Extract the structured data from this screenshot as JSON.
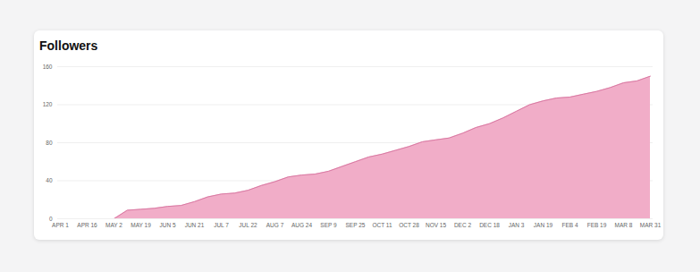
{
  "chart_data": {
    "type": "area",
    "title": "Followers",
    "categories": [
      "APR 1",
      null,
      "APR 16",
      null,
      "MAY 2",
      null,
      "MAY 19",
      null,
      "JUN 5",
      null,
      "JUN 21",
      null,
      "JUL 7",
      null,
      "JUL 22",
      null,
      "AUG 7",
      null,
      "AUG 24",
      null,
      "SEP 9",
      null,
      "SEP 25",
      null,
      "OCT 11",
      null,
      "OCT 28",
      null,
      "NOV 15",
      null,
      "DEC 2",
      null,
      "DEC 18",
      null,
      "JAN 3",
      null,
      "JAN 19",
      null,
      "FEB 4",
      null,
      "FEB 19",
      null,
      "MAR 8",
      null,
      "MAR 31"
    ],
    "values": [
      0,
      0,
      0,
      0,
      0,
      9,
      10,
      11,
      13,
      14,
      18,
      23,
      26,
      27,
      30,
      35,
      39,
      44,
      46,
      47,
      50,
      55,
      60,
      65,
      68,
      72,
      76,
      81,
      83,
      85,
      90,
      96,
      100,
      106,
      113,
      120,
      124,
      127,
      128,
      131,
      134,
      138,
      143,
      145,
      150
    ],
    "color": "#f0a9c5",
    "ylim": [
      0,
      160
    ],
    "yticks": [
      0,
      40,
      80,
      120,
      160
    ],
    "grid": true
  }
}
